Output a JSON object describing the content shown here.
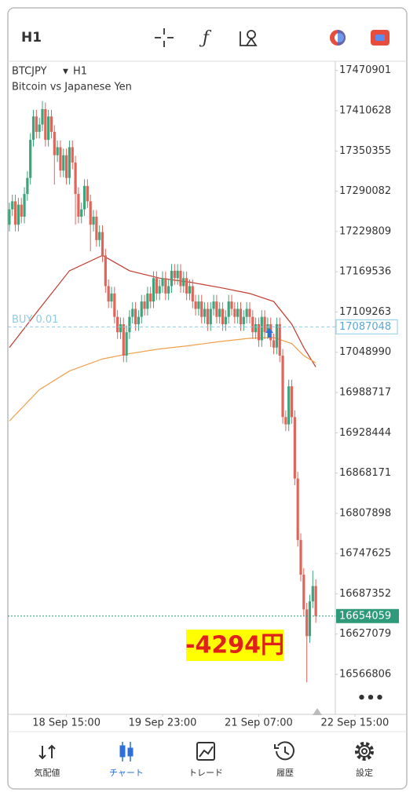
{
  "toolbar": {
    "timeframe": "H1"
  },
  "chart_data": {
    "type": "candlestick",
    "symbol": "BTCJPY",
    "timeframe": "H1",
    "description": "Bitcoin vs Japanese Yen",
    "up_color": "#3ba57c",
    "down_color": "#e0645a",
    "open": [
      17240000,
      17263000,
      17275000,
      17240000,
      17270000,
      17252000,
      17286000,
      17310000,
      17367000,
      17402000,
      17379000,
      17390000,
      17413000,
      17367000,
      17402000,
      17379000,
      17344000,
      17356000,
      17321000,
      17344000,
      17310000,
      17356000,
      17333000,
      17286000,
      17252000,
      17263000,
      17298000,
      17275000,
      17240000,
      17252000,
      17217000,
      17229000,
      17194000,
      17148000,
      17125000,
      17137000,
      17102000,
      17079000,
      17091000,
      17044000,
      17079000,
      17102000,
      17114000,
      17091000,
      17102000,
      17125000,
      17114000,
      17137000,
      17125000,
      17160000,
      17137000,
      17148000,
      17160000,
      17137000,
      17148000,
      17171000,
      17160000,
      17171000,
      17148000,
      17160000,
      17137000,
      17148000,
      17125000,
      17114000,
      17125000,
      17102000,
      17114000,
      17091000,
      17114000,
      17125000,
      17102000,
      17114000,
      17091000,
      17102000,
      17125000,
      17114000,
      17102000,
      17114000,
      17091000,
      17102000,
      17114000,
      17102000,
      17079000,
      17091000,
      17067000,
      17102000,
      17079000,
      17091000,
      17067000,
      17056000,
      17091000,
      17044000,
      16952000,
      16941000,
      16998000,
      16952000,
      16860000,
      16768000,
      16716000,
      16664000,
      16624000,
      16676000,
      16699000
    ],
    "high": [
      17273000,
      17285000,
      17285000,
      17280000,
      17280000,
      17296000,
      17320000,
      17377000,
      17412000,
      17412000,
      17400000,
      17425000,
      17423000,
      17412000,
      17412000,
      17389000,
      17366000,
      17366000,
      17354000,
      17354000,
      17366000,
      17366000,
      17343000,
      17296000,
      17273000,
      17308000,
      17308000,
      17285000,
      17262000,
      17262000,
      17239000,
      17239000,
      17204000,
      17158000,
      17147000,
      17147000,
      17112000,
      17101000,
      17101000,
      17089000,
      17112000,
      17124000,
      17124000,
      17112000,
      17135000,
      17135000,
      17147000,
      17147000,
      17170000,
      17170000,
      17158000,
      17170000,
      17170000,
      17158000,
      17181000,
      17181000,
      17181000,
      17181000,
      17170000,
      17170000,
      17158000,
      17158000,
      17135000,
      17135000,
      17135000,
      17124000,
      17124000,
      17124000,
      17135000,
      17135000,
      17124000,
      17124000,
      17112000,
      17135000,
      17135000,
      17124000,
      17124000,
      17124000,
      17112000,
      17124000,
      17124000,
      17112000,
      17101000,
      17101000,
      17112000,
      17112000,
      17101000,
      17101000,
      17077000,
      17101000,
      17101000,
      17054000,
      16962000,
      17008000,
      17008000,
      16962000,
      16870000,
      16778000,
      16726000,
      16674000,
      16686000,
      16722000,
      16709000
    ],
    "low": [
      17230000,
      17253000,
      17230000,
      17230000,
      17242000,
      17242000,
      17276000,
      17300000,
      17357000,
      17369000,
      17369000,
      17380000,
      17357000,
      17357000,
      17369000,
      17300000,
      17334000,
      17311000,
      17311000,
      17300000,
      17300000,
      17323000,
      17240000,
      17242000,
      17242000,
      17253000,
      17265000,
      17200000,
      17230000,
      17207000,
      17207000,
      17184000,
      17138000,
      17115000,
      17115000,
      17092000,
      17069000,
      17069000,
      17034000,
      17034000,
      17069000,
      17092000,
      17081000,
      17081000,
      17092000,
      17104000,
      17104000,
      17115000,
      17115000,
      17127000,
      17127000,
      17138000,
      17127000,
      17127000,
      17138000,
      17150000,
      17150000,
      17138000,
      17138000,
      17127000,
      17127000,
      17115000,
      17104000,
      17104000,
      17092000,
      17092000,
      17081000,
      17081000,
      17104000,
      17092000,
      17092000,
      17081000,
      17081000,
      17092000,
      17104000,
      17092000,
      17092000,
      17081000,
      17081000,
      17092000,
      17092000,
      17069000,
      17069000,
      17057000,
      17057000,
      17069000,
      17069000,
      17057000,
      17046000,
      17046000,
      17034000,
      16942000,
      16931000,
      16931000,
      16942000,
      16850000,
      16758000,
      16706000,
      16654000,
      16555000,
      16614000,
      16666000,
      16644000
    ],
    "close": [
      17263000,
      17275000,
      17240000,
      17270000,
      17252000,
      17286000,
      17310000,
      17367000,
      17402000,
      17379000,
      17390000,
      17413000,
      17367000,
      17402000,
      17379000,
      17344000,
      17356000,
      17321000,
      17344000,
      17310000,
      17356000,
      17333000,
      17286000,
      17252000,
      17263000,
      17298000,
      17275000,
      17240000,
      17252000,
      17217000,
      17229000,
      17194000,
      17148000,
      17125000,
      17137000,
      17102000,
      17079000,
      17091000,
      17044000,
      17079000,
      17102000,
      17114000,
      17091000,
      17102000,
      17125000,
      17114000,
      17137000,
      17125000,
      17160000,
      17137000,
      17148000,
      17160000,
      17137000,
      17148000,
      17171000,
      17160000,
      17171000,
      17148000,
      17160000,
      17137000,
      17148000,
      17125000,
      17114000,
      17125000,
      17102000,
      17114000,
      17091000,
      17114000,
      17125000,
      17102000,
      17114000,
      17091000,
      17102000,
      17125000,
      17114000,
      17102000,
      17114000,
      17091000,
      17102000,
      17114000,
      17102000,
      17079000,
      17091000,
      17067000,
      17102000,
      17079000,
      17091000,
      17067000,
      17056000,
      17091000,
      17044000,
      16952000,
      16941000,
      16998000,
      16952000,
      16860000,
      16768000,
      16716000,
      16664000,
      16624000,
      16676000,
      16699000,
      16654059
    ],
    "indicators": [
      {
        "color": "#c0392b",
        "x": [
          0,
          10,
          20,
          31,
          40,
          50,
          60,
          70,
          80,
          88,
          94,
          98,
          102
        ],
        "values": [
          17056000,
          17114000,
          17171000,
          17194000,
          17171000,
          17160000,
          17154000,
          17146000,
          17137000,
          17125000,
          17091000,
          17056000,
          17027000
        ]
      },
      {
        "color": "#f0a04b",
        "x": [
          0,
          10,
          20,
          31,
          40,
          50,
          60,
          70,
          80,
          88,
          94,
          98,
          102
        ],
        "values": [
          16946000,
          16993000,
          17021000,
          17039000,
          17047000,
          17054000,
          17059000,
          17065000,
          17070000,
          17071000,
          17062000,
          17044000,
          17033000
        ]
      }
    ],
    "xlim": [
      -0.5,
      108.5
    ],
    "xticks": [
      {
        "value": 19,
        "label": "18 Sep 15:00"
      },
      {
        "value": 51,
        "label": "19 Sep 23:00"
      },
      {
        "value": 83,
        "label": "21 Sep 07:00"
      },
      {
        "value": 115,
        "label": "22 Sep 15:00"
      }
    ],
    "ylim": [
      16506900,
      17484700
    ],
    "yticks": [
      17470901,
      17410628,
      17350355,
      17290082,
      17229809,
      17169536,
      17109263,
      17048990,
      16988717,
      16928444,
      16868171,
      16807898,
      16747625,
      16687352,
      16627079,
      16566806
    ],
    "order_line": {
      "label": "BUY 0.01",
      "value": 17087048,
      "color": "#8ccbe8"
    },
    "current_price": {
      "value": 16654059,
      "color": "#2f9a7a"
    },
    "annotation": "-4294円"
  },
  "nav": {
    "items": [
      "気配値",
      "チャート",
      "トレード",
      "履歴",
      "設定"
    ],
    "active": 1
  }
}
